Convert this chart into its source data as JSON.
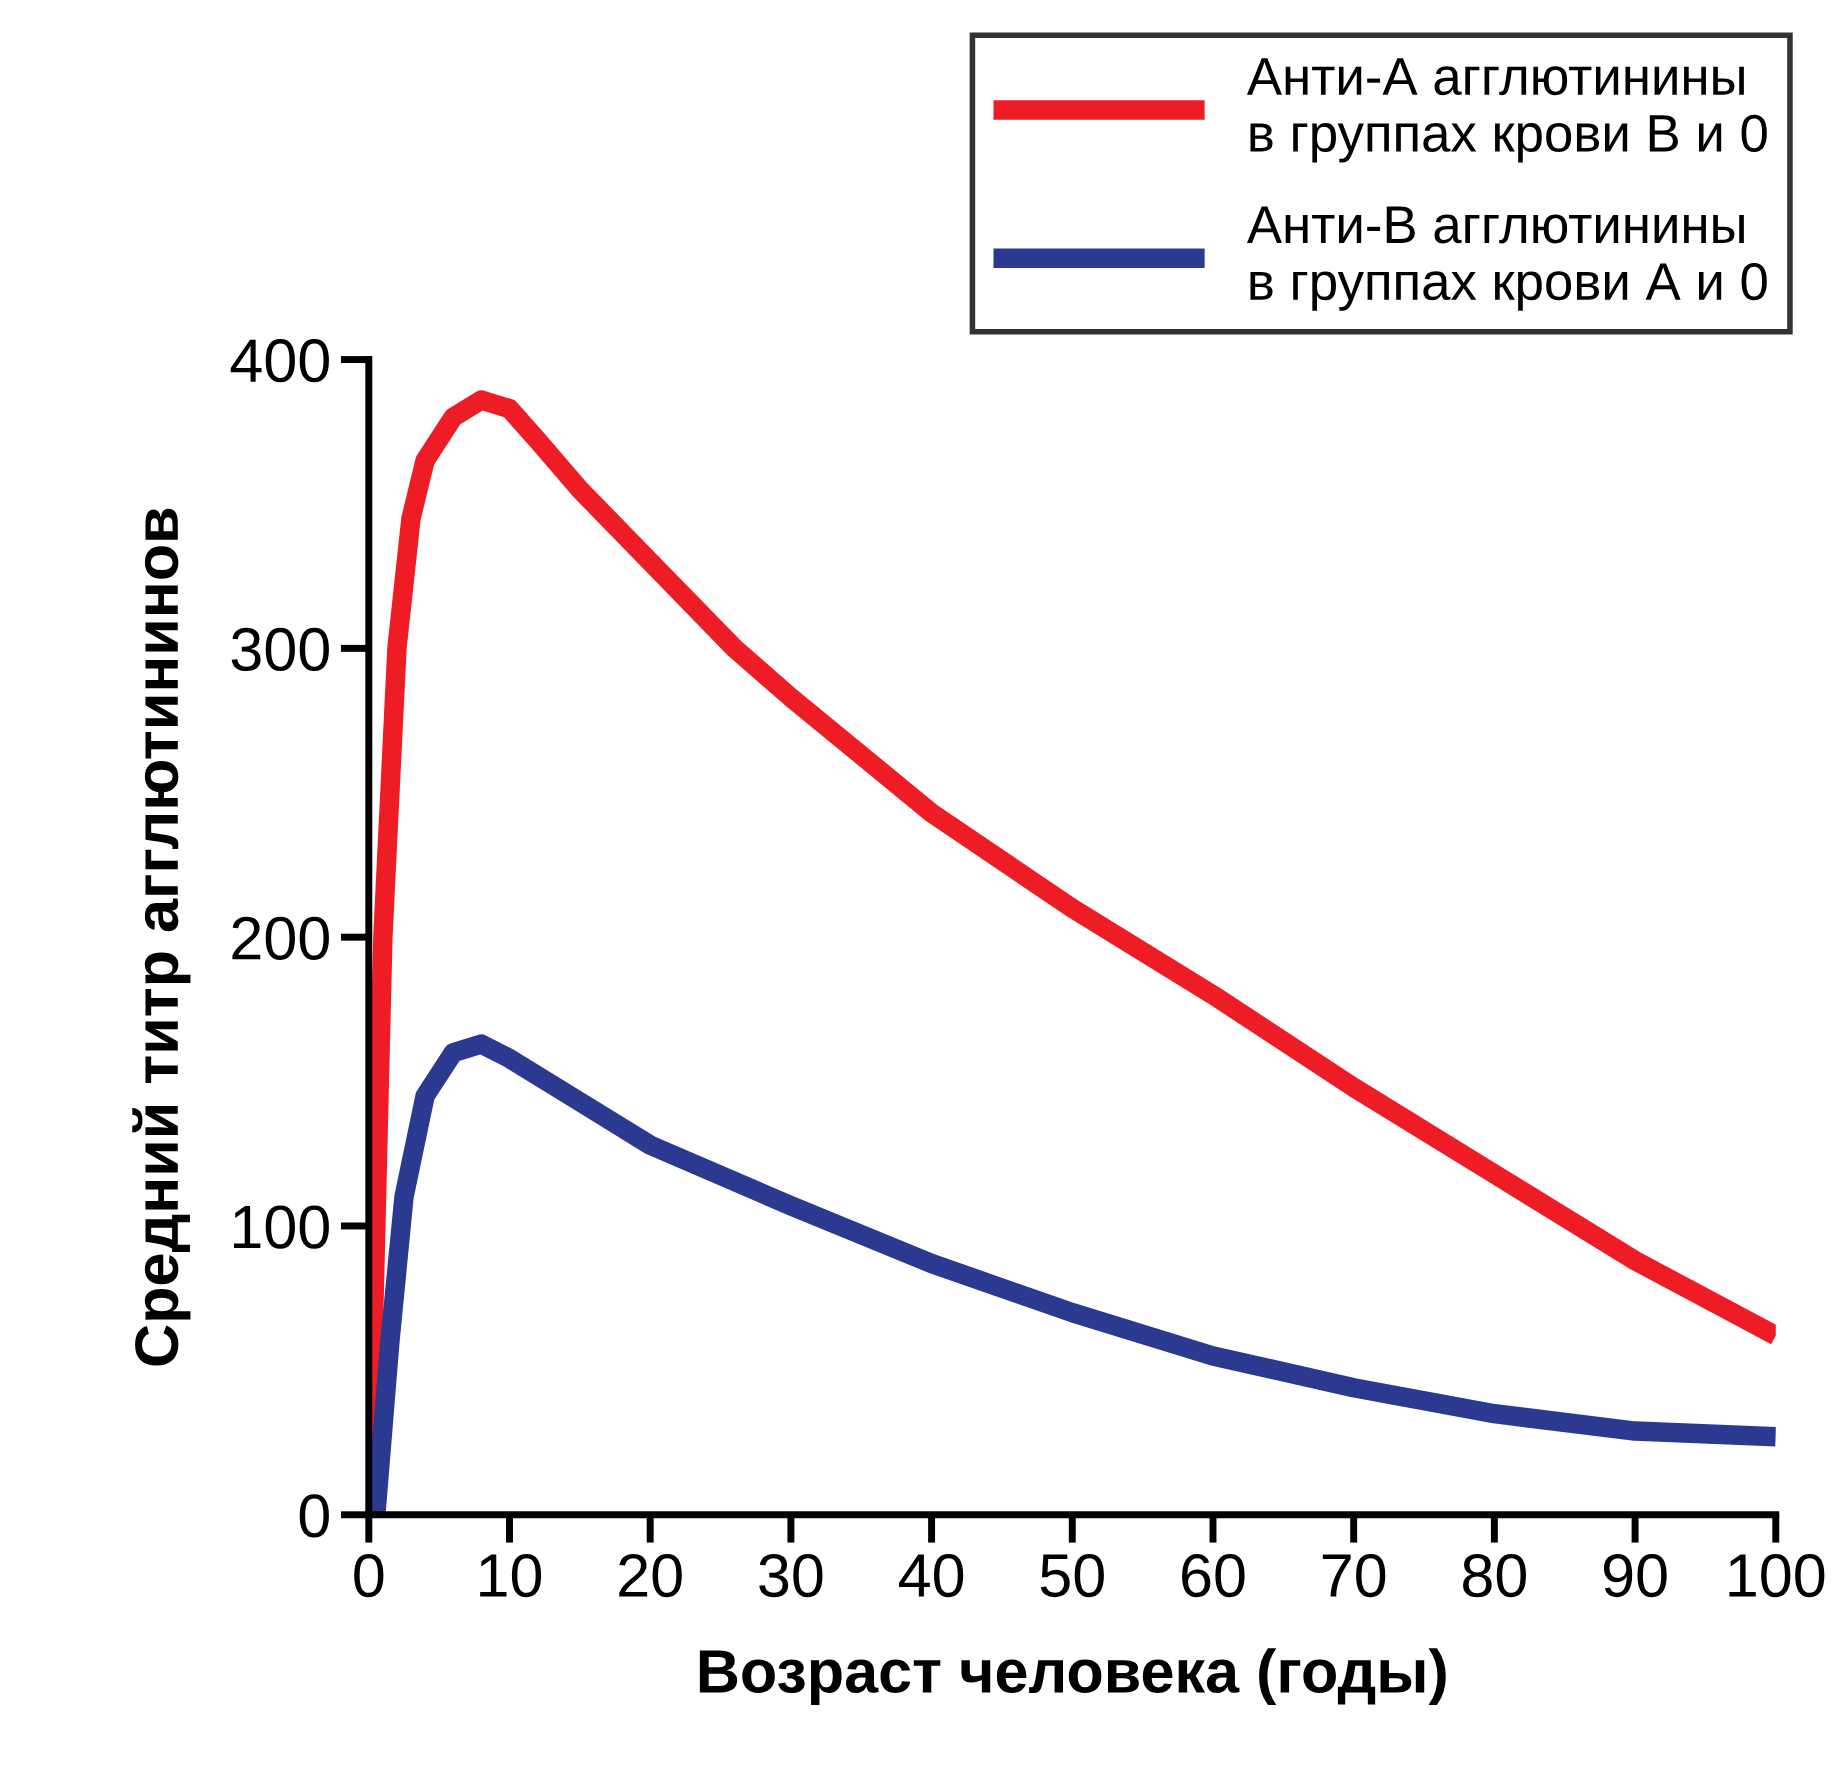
{
  "chart_data": {
    "type": "line",
    "xlabel": "Возраст человека (годы)",
    "ylabel": "Средний титр агглютининов",
    "xlim": [
      0,
      100
    ],
    "ylim": [
      0,
      400
    ],
    "xticks": [
      0,
      10,
      20,
      30,
      40,
      50,
      60,
      70,
      80,
      90,
      100
    ],
    "yticks": [
      0,
      100,
      200,
      300,
      400
    ],
    "grid": false,
    "legend": "top right",
    "marker": "none",
    "line_style": "solid",
    "series": [
      {
        "name": "Анти-А агглютинины\nв группах крови В и 0",
        "color": "#ee1c24",
        "x": [
          0,
          1,
          2,
          3,
          4,
          6,
          8,
          10,
          12,
          15,
          20,
          26,
          30,
          40,
          50,
          60,
          70,
          80,
          90,
          100
        ],
        "values": [
          0,
          200,
          300,
          345,
          365,
          380,
          386,
          383,
          372,
          355,
          330,
          300,
          283,
          243,
          210,
          180,
          148,
          118,
          88,
          62
        ]
      },
      {
        "name": "Анти-В агглютинины\nв группах крови А и 0",
        "color": "#2b3990",
        "x": [
          0.5,
          1.5,
          2.5,
          4,
          6,
          8,
          10,
          15,
          20,
          30,
          40,
          50,
          60,
          70,
          80,
          90,
          100
        ],
        "values": [
          0,
          60,
          110,
          145,
          160,
          163,
          158,
          143,
          128,
          107,
          87,
          70,
          55,
          44,
          35,
          29,
          27
        ]
      }
    ]
  }
}
